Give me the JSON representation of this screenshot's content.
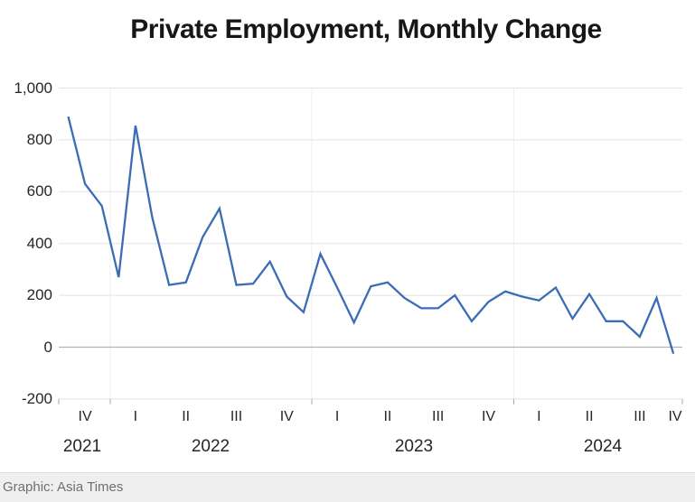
{
  "title": "Private Employment, Monthly Change",
  "footer": {
    "credit": "Graphic: Asia Times"
  },
  "chart_data": {
    "type": "line",
    "title": "Private Employment, Monthly Change",
    "x": [
      "Oct 2021",
      "Nov 2021",
      "Dec 2021",
      "Jan 2022",
      "Feb 2022",
      "Mar 2022",
      "Apr 2022",
      "May 2022",
      "Jun 2022",
      "Jul 2022",
      "Aug 2022",
      "Sep 2022",
      "Oct 2022",
      "Nov 2022",
      "Dec 2022",
      "Jan 2023",
      "Feb 2023",
      "Mar 2023",
      "Apr 2023",
      "May 2023",
      "Jun 2023",
      "Jul 2023",
      "Aug 2023",
      "Sep 2023",
      "Oct 2023",
      "Nov 2023",
      "Dec 2023",
      "Jan 2024",
      "Feb 2024",
      "Mar 2024",
      "Apr 2024",
      "May 2024",
      "Jun 2024",
      "Jul 2024",
      "Aug 2024",
      "Sep 2024",
      "Oct 2024"
    ],
    "values": [
      890,
      630,
      545,
      270,
      855,
      500,
      240,
      250,
      425,
      535,
      240,
      245,
      330,
      195,
      135,
      360,
      230,
      95,
      235,
      250,
      190,
      150,
      150,
      200,
      100,
      175,
      215,
      195,
      180,
      230,
      110,
      205,
      100,
      100,
      40,
      190,
      -25
    ],
    "ylim": [
      -200,
      1000
    ],
    "y_tick_values": [
      1000,
      800,
      600,
      400,
      200,
      0,
      -200
    ],
    "y_tick_labels": [
      "1,000",
      "800",
      "600",
      "400",
      "200",
      "0",
      "-200"
    ],
    "quarter_labels": [
      "IV",
      "I",
      "II",
      "III",
      "IV",
      "I",
      "II",
      "III",
      "IV",
      "I",
      "II",
      "III",
      "IV"
    ],
    "year_labels": [
      "2021",
      "2022",
      "2023",
      "2024"
    ],
    "legend": "none",
    "grid": "horizontal gridlines every 200; vertical separators at year boundaries; darker zero line",
    "line_color": "#3c6cb4"
  }
}
